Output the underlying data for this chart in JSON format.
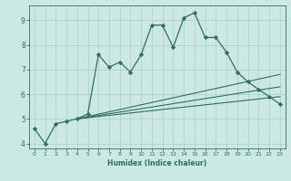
{
  "title": "",
  "xlabel": "Humidex (Indice chaleur)",
  "ylabel": "",
  "bg_color": "#cce8e4",
  "line_color": "#2e6e62",
  "grid_color": "#aacec8",
  "xlim": [
    -0.5,
    23.5
  ],
  "ylim": [
    3.8,
    9.6
  ],
  "xticks": [
    0,
    1,
    2,
    3,
    4,
    5,
    6,
    7,
    8,
    9,
    10,
    11,
    12,
    13,
    14,
    15,
    16,
    17,
    18,
    19,
    20,
    21,
    22,
    23
  ],
  "yticks": [
    4,
    5,
    6,
    7,
    8,
    9
  ],
  "curves": [
    {
      "x": [
        0,
        1,
        2,
        3,
        4,
        5,
        6,
        7,
        8,
        9,
        10,
        11,
        12,
        13,
        14,
        15,
        16,
        17,
        18,
        19,
        20,
        21,
        22,
        23
      ],
      "y": [
        4.6,
        4.0,
        4.8,
        4.9,
        5.0,
        5.2,
        7.6,
        7.1,
        7.3,
        6.9,
        7.6,
        8.8,
        8.8,
        7.9,
        9.1,
        9.3,
        8.3,
        8.3,
        7.7,
        6.9,
        6.5,
        6.2,
        5.9,
        5.6
      ],
      "marker": "D",
      "markersize": 2.2,
      "lw": 0.9
    },
    {
      "x": [
        4,
        23
      ],
      "y": [
        5.0,
        5.9
      ],
      "marker": null,
      "markersize": 0,
      "lw": 0.8
    },
    {
      "x": [
        4,
        23
      ],
      "y": [
        5.0,
        6.3
      ],
      "marker": null,
      "markersize": 0,
      "lw": 0.8
    },
    {
      "x": [
        4,
        23
      ],
      "y": [
        5.0,
        6.8
      ],
      "marker": null,
      "markersize": 0,
      "lw": 0.8
    }
  ]
}
